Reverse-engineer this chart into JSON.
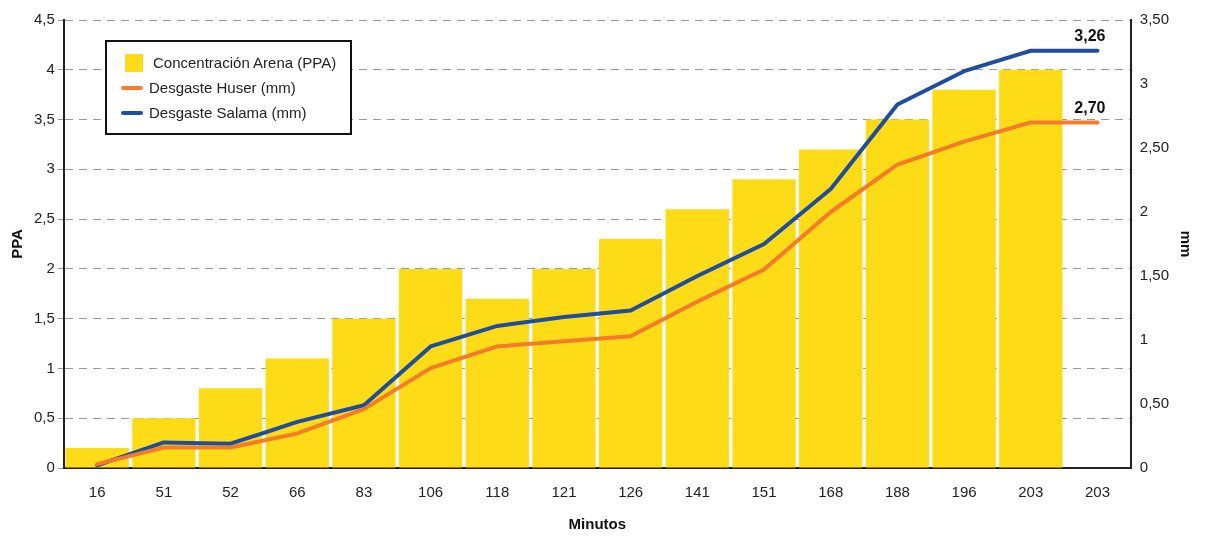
{
  "chart_data": {
    "type": "bar",
    "xlabel": "Minutos",
    "ylabel": "PPA",
    "y2label": "mm",
    "categories": [
      "16",
      "51",
      "52",
      "66",
      "83",
      "106",
      "118",
      "121",
      "126",
      "141",
      "151",
      "168",
      "188",
      "196",
      "203",
      "203"
    ],
    "series": [
      {
        "name": "Concentración Arena (PPA)",
        "color": "#fddc17",
        "values": [
          0.2,
          0.5,
          0.8,
          1.1,
          1.5,
          2.0,
          1.7,
          2.0,
          2.3,
          2.6,
          2.9,
          3.2,
          3.5,
          3.8,
          4.0,
          null
        ]
      },
      {
        "name": "Desgaste Huser (mm)",
        "type": "line",
        "axis": "y2",
        "color": "#f47b2a",
        "values": [
          0.03,
          0.16,
          0.16,
          0.27,
          0.46,
          0.78,
          0.95,
          0.99,
          1.03,
          1.3,
          1.55,
          2.0,
          2.37,
          2.55,
          2.7,
          2.7
        ],
        "value_labels": [
          null,
          null,
          null,
          null,
          null,
          null,
          null,
          null,
          null,
          null,
          null,
          null,
          null,
          null,
          null,
          "2,70"
        ]
      },
      {
        "name": "Desgaste Salama (mm)",
        "type": "line",
        "axis": "y2",
        "color": "#1f4e9e",
        "values": [
          0.02,
          0.2,
          0.19,
          0.36,
          0.49,
          0.95,
          1.11,
          1.18,
          1.23,
          1.5,
          1.75,
          2.18,
          2.84,
          3.1,
          3.26,
          3.26
        ],
        "value_labels": [
          null,
          null,
          null,
          null,
          null,
          null,
          null,
          null,
          null,
          null,
          null,
          null,
          null,
          null,
          null,
          "3,26"
        ]
      }
    ],
    "ylim": [
      0,
      4.5
    ],
    "yticks": [
      0,
      {
        "value": 0.5,
        "label": "0,5"
      },
      1,
      {
        "value": 1.5,
        "label": "1,5"
      },
      2,
      {
        "value": 2.5,
        "label": "2,5"
      },
      3,
      {
        "value": 3.5,
        "label": "3,5"
      },
      4,
      {
        "value": 4.5,
        "label": "4,5"
      }
    ],
    "y2lim": [
      0,
      3.5
    ],
    "y2ticks": [
      0,
      {
        "value": 0.5,
        "label": "0,50"
      },
      1,
      {
        "value": 1.5,
        "label": "1,50"
      },
      2,
      {
        "value": 2.5,
        "label": "2,50"
      },
      3,
      {
        "value": 3.5,
        "label": "3,50"
      }
    ],
    "grid": "y",
    "legend": "top left",
    "marker": "none",
    "line_style": "solid"
  }
}
